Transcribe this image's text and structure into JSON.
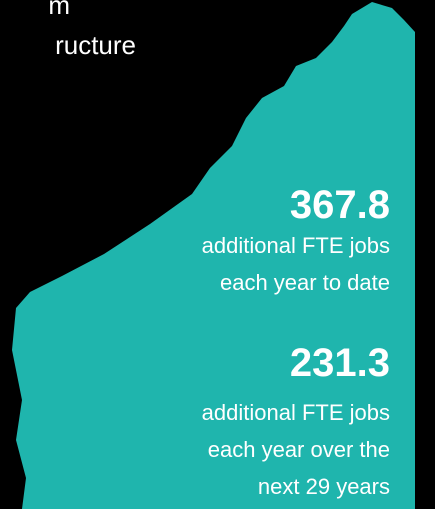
{
  "heading": {
    "lines": [
      "m",
      "ructure"
    ]
  },
  "stats": [
    {
      "value": "367.8",
      "lines": [
        "additional FTE jobs",
        "each year to date"
      ]
    },
    {
      "value": "231.3",
      "lines": [
        "additional FTE jobs",
        "each year over the",
        "next 29 years"
      ]
    }
  ]
}
